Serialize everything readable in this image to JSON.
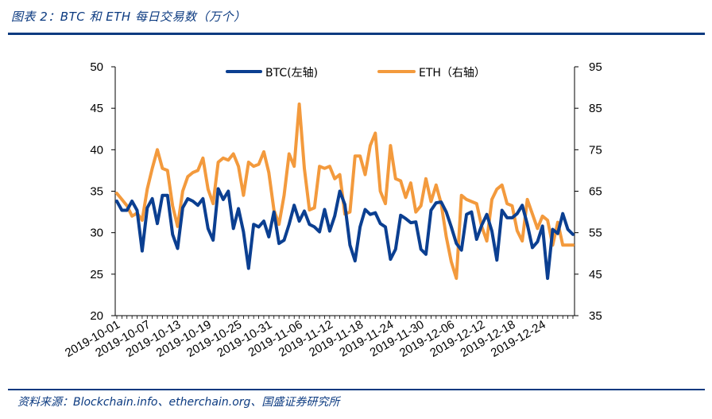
{
  "figure": {
    "title": "图表 2：BTC 和 ETH 每日交易数（万个）",
    "source": "资料来源：Blockchain.info、etherchain.org、国盛证券研究所"
  },
  "chart_data": {
    "type": "line",
    "title": "BTC 和 ETH 每日交易数（万个）",
    "xlabel": "",
    "ylabel": "",
    "ylim": [
      20,
      50
    ],
    "y2lim": [
      35,
      95
    ],
    "yticks": [
      20,
      25,
      30,
      35,
      40,
      45,
      50
    ],
    "y2ticks": [
      35,
      45,
      55,
      65,
      75,
      85,
      95
    ],
    "xtick_labels": [
      "2019-10-01",
      "2019-10-07",
      "2019-10-13",
      "2019-10-19",
      "2019-10-25",
      "2019-10-31",
      "2019-11-06",
      "2019-11-12",
      "2019-11-18",
      "2019-11-24",
      "2019-11-30",
      "2019-12-06",
      "2019-12-12",
      "2019-12-18",
      "2019-12-24"
    ],
    "legend": {
      "position": "top-center"
    },
    "grid": false,
    "x": [
      "2019-10-01",
      "2019-10-02",
      "2019-10-03",
      "2019-10-04",
      "2019-10-05",
      "2019-10-06",
      "2019-10-07",
      "2019-10-08",
      "2019-10-09",
      "2019-10-10",
      "2019-10-11",
      "2019-10-12",
      "2019-10-13",
      "2019-10-14",
      "2019-10-15",
      "2019-10-16",
      "2019-10-17",
      "2019-10-18",
      "2019-10-19",
      "2019-10-20",
      "2019-10-21",
      "2019-10-22",
      "2019-10-23",
      "2019-10-24",
      "2019-10-25",
      "2019-10-26",
      "2019-10-27",
      "2019-10-28",
      "2019-10-29",
      "2019-10-30",
      "2019-10-31",
      "2019-11-01",
      "2019-11-02",
      "2019-11-03",
      "2019-11-04",
      "2019-11-05",
      "2019-11-06",
      "2019-11-07",
      "2019-11-08",
      "2019-11-09",
      "2019-11-10",
      "2019-11-11",
      "2019-11-12",
      "2019-11-13",
      "2019-11-14",
      "2019-11-15",
      "2019-11-16",
      "2019-11-17",
      "2019-11-18",
      "2019-11-19",
      "2019-11-20",
      "2019-11-21",
      "2019-11-22",
      "2019-11-23",
      "2019-11-24",
      "2019-11-25",
      "2019-11-26",
      "2019-11-27",
      "2019-11-28",
      "2019-11-29",
      "2019-11-30",
      "2019-12-01",
      "2019-12-02",
      "2019-12-03",
      "2019-12-04",
      "2019-12-05",
      "2019-12-06",
      "2019-12-07",
      "2019-12-08",
      "2019-12-09",
      "2019-12-10",
      "2019-12-11",
      "2019-12-12",
      "2019-12-13",
      "2019-12-14",
      "2019-12-15",
      "2019-12-16",
      "2019-12-17",
      "2019-12-18",
      "2019-12-19",
      "2019-12-20",
      "2019-12-21",
      "2019-12-22",
      "2019-12-23",
      "2019-12-24",
      "2019-12-25",
      "2019-12-26",
      "2019-12-27",
      "2019-12-28",
      "2019-12-29",
      "2019-12-30"
    ],
    "series": [
      {
        "name": "BTC(左轴)",
        "axis": "left",
        "color": "#0b3f91",
        "values": [
          33.8,
          32.7,
          32.7,
          33.8,
          32.7,
          27.8,
          33.0,
          34.1,
          31.1,
          34.5,
          34.5,
          29.8,
          28.1,
          33.0,
          34.1,
          33.8,
          33.3,
          34.1,
          30.5,
          29.1,
          35.3,
          34.0,
          35.0,
          30.5,
          32.9,
          30.1,
          25.7,
          31.0,
          30.7,
          31.4,
          29.5,
          32.5,
          28.7,
          29.1,
          31.0,
          33.3,
          31.4,
          32.6,
          31.0,
          30.7,
          30.1,
          32.8,
          30.2,
          32.0,
          35.0,
          33.4,
          28.5,
          26.6,
          30.7,
          32.8,
          32.2,
          32.4,
          31.1,
          30.7,
          26.8,
          28.0,
          32.1,
          31.7,
          31.2,
          31.3,
          28.0,
          27.4,
          32.7,
          33.6,
          33.7,
          32.5,
          30.7,
          28.7,
          27.9,
          32.2,
          32.5,
          29.2,
          30.9,
          32.2,
          30.2,
          26.7,
          32.7,
          31.8,
          31.8,
          32.3,
          33.3,
          31.0,
          28.2,
          28.9,
          30.8,
          24.5,
          30.4,
          29.9,
          32.3,
          30.4,
          29.8
        ]
      },
      {
        "name": "ETH（右轴）",
        "axis": "right",
        "color": "#f39a3d",
        "values": [
          64.5,
          63.0,
          61.5,
          59.0,
          59.7,
          58.0,
          65.5,
          70.5,
          75.0,
          70.5,
          70.0,
          61.5,
          56.5,
          65.0,
          68.5,
          69.5,
          70.0,
          73.0,
          65.5,
          62.0,
          72.0,
          73.0,
          72.5,
          74.0,
          71.0,
          64.0,
          72.0,
          71.0,
          71.5,
          74.5,
          69.5,
          60.5,
          57.0,
          64.0,
          74.0,
          71.0,
          86.0,
          70.5,
          60.5,
          61.0,
          71.0,
          70.5,
          71.0,
          68.0,
          69.0,
          59.5,
          60.0,
          73.5,
          73.5,
          69.0,
          76.0,
          79.0,
          65.0,
          62.0,
          76.0,
          68.0,
          67.5,
          63.5,
          67.0,
          60.0,
          61.5,
          68.0,
          62.5,
          66.5,
          62.0,
          54.0,
          48.0,
          44.0,
          64.0,
          63.0,
          62.5,
          62.0,
          56.5,
          53.0,
          63.0,
          65.5,
          66.5,
          62.0,
          61.5,
          55.5,
          53.0,
          63.0,
          59.5,
          56.0,
          59.0,
          58.0,
          52.0,
          57.5,
          52.0,
          52.0,
          52.0
        ]
      }
    ]
  }
}
